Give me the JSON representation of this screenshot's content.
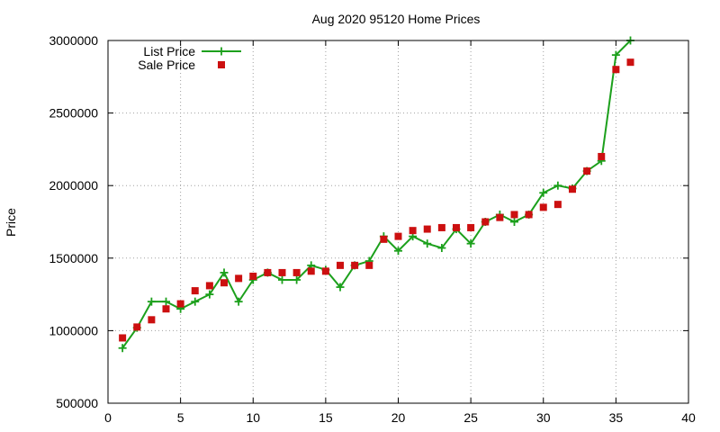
{
  "chart_data": {
    "type": "scatter",
    "title": "Aug 2020 95120 Home Prices",
    "xlabel": "",
    "ylabel": "Price",
    "xlim": [
      0,
      40
    ],
    "ylim": [
      500000,
      3000000
    ],
    "x_ticks": [
      "0",
      "5",
      "10",
      "15",
      "20",
      "25",
      "30",
      "35",
      "40"
    ],
    "y_ticks": [
      "500000",
      "1000000",
      "1500000",
      "2000000",
      "2500000",
      "3000000"
    ],
    "grid": true,
    "legend_position": "top-left",
    "series": [
      {
        "name": "List Price",
        "style": "linespoints",
        "marker": "plus",
        "color": "#1ca01c",
        "x": [
          1,
          2,
          3,
          4,
          5,
          6,
          7,
          8,
          9,
          10,
          11,
          12,
          13,
          14,
          15,
          16,
          17,
          18,
          19,
          20,
          21,
          22,
          23,
          24,
          25,
          26,
          27,
          28,
          29,
          30,
          31,
          32,
          33,
          34,
          35,
          36
        ],
        "values": [
          880000,
          1020000,
          1200000,
          1200000,
          1150000,
          1200000,
          1250000,
          1400000,
          1200000,
          1350000,
          1400000,
          1350000,
          1350000,
          1450000,
          1420000,
          1300000,
          1450000,
          1480000,
          1650000,
          1550000,
          1650000,
          1600000,
          1570000,
          1700000,
          1600000,
          1750000,
          1800000,
          1750000,
          1800000,
          1950000,
          2000000,
          1980000,
          2100000,
          2170000,
          2900000,
          3000000
        ]
      },
      {
        "name": "Sale Price",
        "style": "points",
        "marker": "square",
        "color": "#cc1010",
        "x": [
          1,
          2,
          3,
          4,
          5,
          6,
          7,
          8,
          9,
          10,
          11,
          12,
          13,
          14,
          15,
          16,
          17,
          18,
          19,
          20,
          21,
          22,
          23,
          24,
          25,
          26,
          27,
          28,
          29,
          30,
          31,
          32,
          33,
          34,
          35,
          36
        ],
        "values": [
          950000,
          1025000,
          1075000,
          1150000,
          1185000,
          1275000,
          1310000,
          1330000,
          1360000,
          1375000,
          1400000,
          1400000,
          1400000,
          1410000,
          1410000,
          1450000,
          1450000,
          1450000,
          1630000,
          1650000,
          1690000,
          1700000,
          1710000,
          1710000,
          1710000,
          1750000,
          1780000,
          1800000,
          1800000,
          1850000,
          1870000,
          1975000,
          2100000,
          2200000,
          2800000,
          2850000
        ]
      }
    ]
  }
}
